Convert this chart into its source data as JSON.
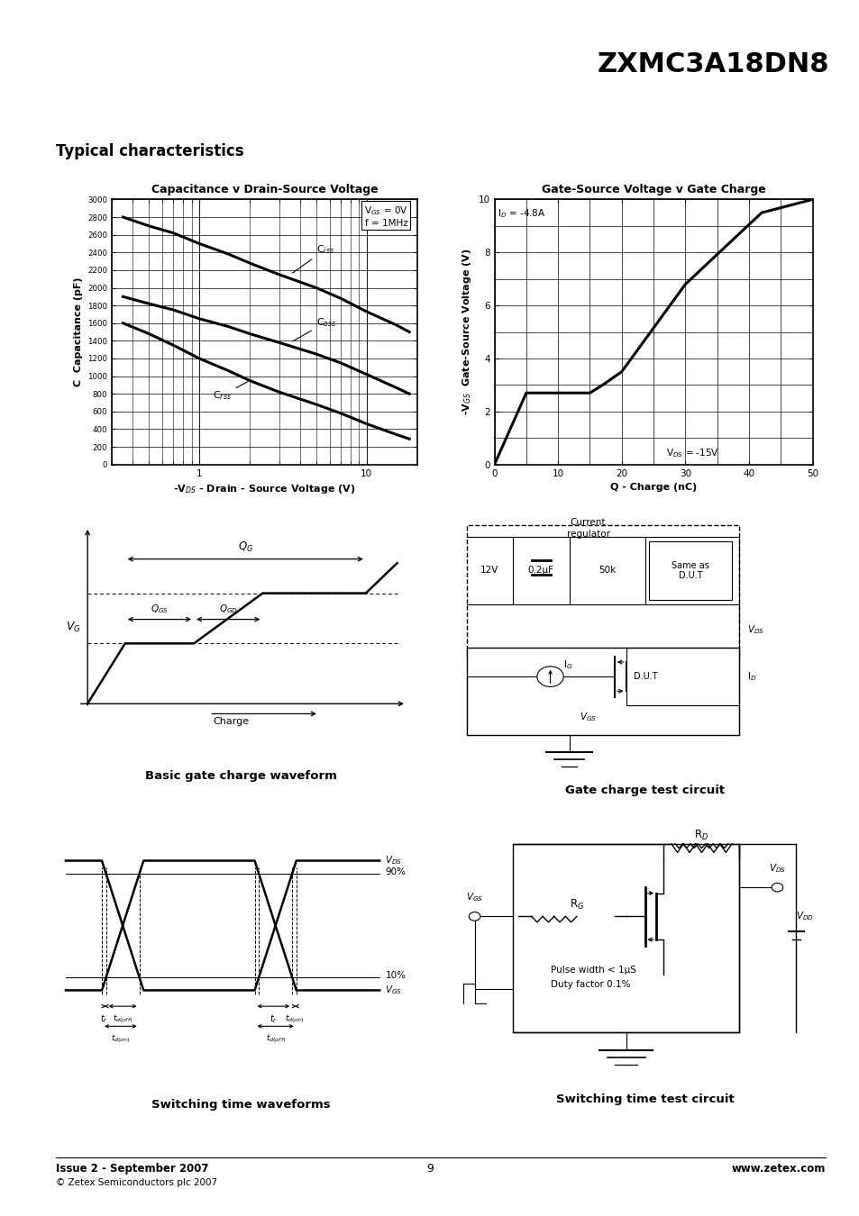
{
  "title": "ZXMC3A18DN8",
  "section_title": "Typical characteristics",
  "footer_left1": "Issue 2 - September 2007",
  "footer_left2": "© Zetex Semiconductors plc 2007",
  "footer_center": "9",
  "footer_right": "www.zetex.com",
  "plot1_title": "Capacitance v Drain-Source Voltage",
  "plot1_xlabel": "-V$_{DS}$ - Drain - Source Voltage (V)",
  "plot1_ylabel": "C  Capacitance (pF)",
  "plot1_vgs": "V$_{GS}$ = 0V",
  "plot1_f": "f = 1MHz",
  "plot2_title": "Gate-Source Voltage v Gate Charge",
  "plot2_xlabel": "Q - Charge (nC)",
  "plot2_ylabel": "-V$_{GS}$  Gate-Source Voltage (V)",
  "plot2_id": "I$_D$ = -4.8A",
  "plot2_vds": "V$_{DS}$ = -15V",
  "plot3_title": "Basic gate charge waveform",
  "plot4_title": "Gate charge test circuit",
  "plot5_title": "Switching time waveforms",
  "plot6_title": "Switching time test circuit",
  "bg_color": "#ffffff",
  "cap_yticks": [
    0,
    200,
    400,
    600,
    800,
    1000,
    1200,
    1400,
    1600,
    1800,
    2000,
    2200,
    2400,
    2600,
    2800,
    3000
  ],
  "gc_xticks": [
    0,
    10,
    20,
    30,
    40,
    50
  ],
  "gc_yticks": [
    0,
    2,
    4,
    6,
    8,
    10
  ],
  "ciss_x": [
    0.35,
    0.5,
    0.7,
    1.0,
    1.5,
    2.0,
    3.0,
    5.0,
    7.0,
    10.0,
    15.0,
    18.0
  ],
  "ciss_y": [
    2800,
    2700,
    2620,
    2500,
    2380,
    2280,
    2150,
    2000,
    1880,
    1730,
    1580,
    1500
  ],
  "coss_x": [
    0.35,
    0.5,
    0.7,
    1.0,
    1.5,
    2.0,
    3.0,
    5.0,
    7.0,
    10.0,
    15.0,
    18.0
  ],
  "coss_y": [
    1900,
    1820,
    1750,
    1650,
    1560,
    1480,
    1380,
    1250,
    1150,
    1020,
    870,
    800
  ],
  "crss_x": [
    0.35,
    0.5,
    0.7,
    1.0,
    1.5,
    2.0,
    3.0,
    5.0,
    7.0,
    10.0,
    15.0,
    18.0
  ],
  "crss_y": [
    1600,
    1480,
    1350,
    1200,
    1060,
    950,
    820,
    680,
    580,
    460,
    340,
    290
  ],
  "gc_curve_x": [
    0,
    5,
    15,
    17,
    20,
    30,
    42,
    50
  ],
  "gc_curve_y": [
    0,
    2.7,
    2.7,
    3.0,
    3.5,
    6.8,
    9.5,
    10.0
  ]
}
